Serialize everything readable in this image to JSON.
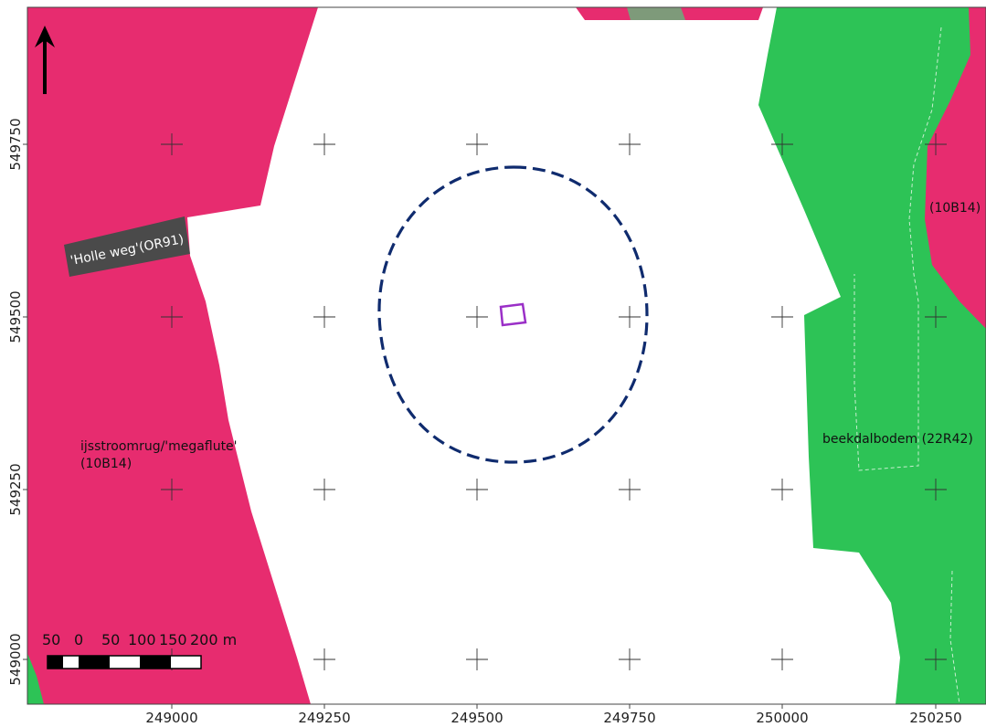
{
  "map": {
    "colors": {
      "pink": "#e72c6f",
      "green": "#2dc356",
      "gray": "#7e9a7a",
      "road": "#4a4a4a",
      "circle": "#0f2b6e",
      "marker": "#9a2fc7",
      "background": "#ffffff"
    },
    "labels": {
      "holle_weg": "'Holle weg'(OR91)",
      "ijsstroomrug_line1": "ijsstroomrug/'megaflute'",
      "ijsstroomrug_line2": "(10B14)",
      "beekdalbodem": "beekdalbodem (22R42)",
      "top_right_code": "(10B14)"
    },
    "x_ticks": [
      "249000",
      "249250",
      "249500",
      "249750",
      "250000",
      "250250"
    ],
    "y_ticks": [
      "549750",
      "549500",
      "549250",
      "549000"
    ],
    "scale_bar": {
      "labels": [
        "50",
        "0",
        "50",
        "100",
        "150",
        "200 m"
      ]
    },
    "north_arrow_icon": "north-arrow-icon"
  }
}
